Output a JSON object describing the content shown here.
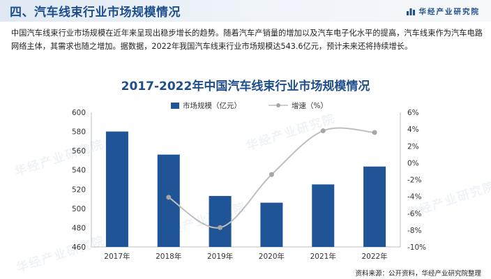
{
  "header": {
    "title": "四、汽车线束行业市场规模情况",
    "brand_name": "华经产业研究院",
    "brand_icon": "bar-logo-icon"
  },
  "intro": {
    "text": "中国汽车线束行业市场规模在近年来呈现出稳步增长的趋势。随着汽车产销量的增加以及汽车电子化水平的提高，汽车线束作为汽车电路网络主体，其需求也随之增加。据数据，2022年我国汽车线束行业市场规模达543.6亿元，预计未来还将持续增长。"
  },
  "watermark": {
    "text": "华经产业研究院"
  },
  "chart_data": {
    "type": "bar",
    "title": "2017-2022年中国汽车线束行业市场规模情况",
    "categories": [
      "2017年",
      "2018年",
      "2019年",
      "2020年",
      "2021年",
      "2022年"
    ],
    "series": [
      {
        "name": "市场规模（亿元）",
        "type": "bar",
        "axis": "left",
        "color": "#1f5597",
        "values": [
          580,
          556,
          513,
          506,
          525,
          543.6
        ]
      },
      {
        "name": "增速（%）",
        "type": "line",
        "axis": "right",
        "color": "#bfbfbf",
        "marker_color": "#a6a6a6",
        "values": [
          null,
          -4.1,
          -7.7,
          -1.4,
          3.8,
          3.6
        ]
      }
    ],
    "y_left": {
      "min": 460,
      "max": 600,
      "step": 20,
      "ticks": [
        "600",
        "580",
        "560",
        "540",
        "520",
        "500",
        "480",
        "460"
      ]
    },
    "y_right": {
      "min": -10,
      "max": 6,
      "step": 2,
      "ticks": [
        "6%",
        "4%",
        "2%",
        "0%",
        "-2%",
        "-4%",
        "-6%",
        "-8%",
        "-10%"
      ]
    },
    "grid": false,
    "legend_position": "top-center"
  },
  "source": {
    "text": "资料来源：公开资料，华经产业研究院整理"
  }
}
